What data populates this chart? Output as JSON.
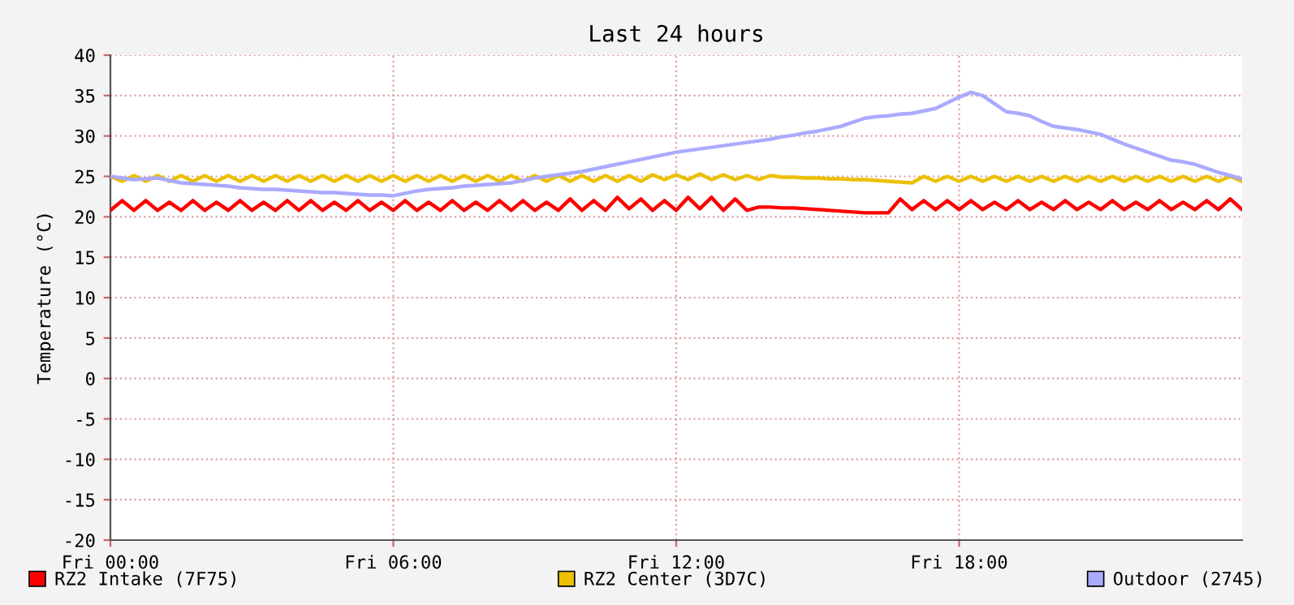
{
  "chart_data": {
    "type": "line",
    "title": "Last 24 hours",
    "ylabel": "Temperature (°C)",
    "categories": [
      "Fri 00:00",
      null,
      null,
      null,
      null,
      null,
      null,
      null,
      null,
      null,
      null,
      null,
      null,
      null,
      null,
      null,
      null,
      null,
      null,
      null,
      null,
      null,
      null,
      null,
      "Fri 06:00",
      null,
      null,
      null,
      null,
      null,
      null,
      null,
      null,
      null,
      null,
      null,
      null,
      null,
      null,
      null,
      null,
      null,
      null,
      null,
      null,
      null,
      null,
      null,
      "Fri 12:00",
      null,
      null,
      null,
      null,
      null,
      null,
      null,
      null,
      null,
      null,
      null,
      null,
      null,
      null,
      null,
      null,
      null,
      null,
      null,
      null,
      null,
      null,
      null,
      "Fri 18:00",
      null,
      null,
      null,
      null,
      null,
      null,
      null,
      null,
      null,
      null,
      null,
      null,
      null,
      null,
      null,
      null,
      null,
      null,
      null,
      null,
      null,
      null,
      null,
      null
    ],
    "ylim": [
      -20,
      40
    ],
    "yticks": [
      -20,
      -15,
      -10,
      -5,
      0,
      5,
      10,
      15,
      20,
      25,
      30,
      35,
      40
    ],
    "grid": true,
    "legend": "bottom",
    "marker": "none",
    "line_style": "solid",
    "series": [
      {
        "name": "RZ2 Intake (7F75)",
        "color": "#ff0000",
        "values": [
          20.8,
          22.0,
          20.8,
          22.0,
          20.8,
          21.8,
          20.8,
          22.0,
          20.8,
          21.8,
          20.8,
          22.0,
          20.8,
          21.8,
          20.8,
          22.0,
          20.8,
          22.0,
          20.8,
          21.8,
          20.8,
          22.0,
          20.8,
          21.8,
          20.8,
          22.0,
          20.8,
          21.8,
          20.8,
          22.0,
          20.8,
          21.8,
          20.8,
          22.0,
          20.8,
          22.0,
          20.8,
          21.8,
          20.8,
          22.2,
          20.8,
          22.0,
          20.8,
          22.4,
          21.0,
          22.2,
          20.8,
          22.0,
          20.8,
          22.4,
          21.0,
          22.4,
          20.8,
          22.2,
          20.8,
          21.2,
          21.2,
          21.1,
          21.1,
          21.0,
          20.9,
          20.8,
          20.7,
          20.6,
          20.5,
          20.5,
          20.5,
          22.2,
          20.9,
          22.0,
          20.9,
          22.0,
          20.9,
          22.0,
          20.9,
          21.8,
          20.9,
          22.0,
          20.9,
          21.8,
          20.9,
          22.0,
          20.9,
          21.8,
          20.9,
          22.0,
          20.9,
          21.8,
          20.9,
          22.0,
          20.9,
          21.8,
          20.9,
          22.0,
          20.9,
          22.2,
          20.9
        ]
      },
      {
        "name": "RZ2 Center (3D7C)",
        "color": "#ecc000",
        "values": [
          25.0,
          24.4,
          25.1,
          24.4,
          25.1,
          24.4,
          25.1,
          24.4,
          25.1,
          24.4,
          25.1,
          24.4,
          25.1,
          24.4,
          25.1,
          24.4,
          25.1,
          24.4,
          25.1,
          24.4,
          25.1,
          24.4,
          25.1,
          24.4,
          25.1,
          24.4,
          25.1,
          24.4,
          25.1,
          24.4,
          25.1,
          24.4,
          25.1,
          24.4,
          25.1,
          24.4,
          25.1,
          24.4,
          25.1,
          24.4,
          25.1,
          24.4,
          25.1,
          24.4,
          25.1,
          24.4,
          25.2,
          24.6,
          25.2,
          24.6,
          25.3,
          24.6,
          25.2,
          24.6,
          25.1,
          24.6,
          25.1,
          24.9,
          24.9,
          24.8,
          24.8,
          24.7,
          24.7,
          24.6,
          24.6,
          24.5,
          24.4,
          24.3,
          24.2,
          25.0,
          24.4,
          25.0,
          24.4,
          25.0,
          24.4,
          25.0,
          24.4,
          25.0,
          24.4,
          25.0,
          24.4,
          25.0,
          24.4,
          25.0,
          24.4,
          25.0,
          24.4,
          25.0,
          24.4,
          25.0,
          24.4,
          25.0,
          24.4,
          25.0,
          24.4,
          25.0,
          24.4
        ]
      },
      {
        "name": "Outdoor (2745)",
        "color": "#aaaaff",
        "values": [
          25.0,
          24.8,
          24.6,
          24.7,
          24.8,
          24.5,
          24.2,
          24.1,
          24.0,
          23.9,
          23.8,
          23.6,
          23.5,
          23.4,
          23.4,
          23.3,
          23.2,
          23.1,
          23.0,
          23.0,
          22.9,
          22.8,
          22.7,
          22.7,
          22.6,
          22.9,
          23.2,
          23.4,
          23.5,
          23.6,
          23.8,
          23.9,
          24.0,
          24.1,
          24.2,
          24.5,
          24.8,
          25.0,
          25.2,
          25.4,
          25.6,
          25.9,
          26.2,
          26.5,
          26.8,
          27.1,
          27.4,
          27.7,
          28.0,
          28.2,
          28.4,
          28.6,
          28.8,
          29.0,
          29.2,
          29.4,
          29.6,
          29.9,
          30.1,
          30.4,
          30.6,
          30.9,
          31.2,
          31.7,
          32.2,
          32.4,
          32.5,
          32.7,
          32.8,
          33.1,
          33.4,
          34.1,
          34.8,
          35.4,
          35.0,
          34.0,
          33.0,
          32.8,
          32.5,
          31.8,
          31.2,
          31.0,
          30.8,
          30.5,
          30.2,
          29.6,
          29.0,
          28.5,
          28.0,
          27.5,
          27.0,
          26.8,
          26.5,
          26.0,
          25.5,
          25.1,
          24.7
        ]
      }
    ]
  }
}
